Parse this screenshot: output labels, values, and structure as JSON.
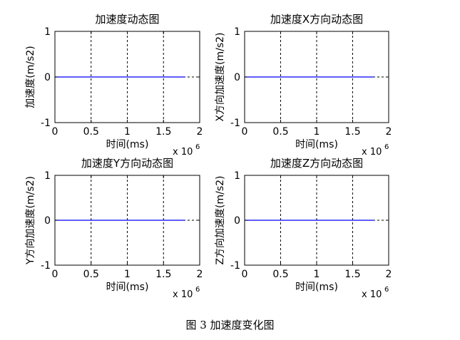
{
  "caption": "图 3  加速度变化图",
  "chart_data": [
    {
      "type": "line",
      "title": "加速度动态图",
      "xlabel": "时间(ms)",
      "ylabel": "加速度(m/s2)",
      "x_multiplier_label": "x 10",
      "x_multiplier_exponent": "6",
      "xlim": [
        0,
        2
      ],
      "ylim": [
        -1,
        1
      ],
      "xticks": [
        "0",
        "0.5",
        "1",
        "1.5",
        "2"
      ],
      "yticks": [
        "-1",
        "0",
        "1"
      ],
      "grid": "x-dashed",
      "series_color": "#0000ff",
      "series": [
        {
          "x": [
            0,
            1.8
          ],
          "y": [
            0,
            0
          ]
        }
      ]
    },
    {
      "type": "line",
      "title": "加速度X方向动态图",
      "xlabel": "时间(ms)",
      "ylabel": "X方向加速度(m/s2)",
      "x_multiplier_label": "x 10",
      "x_multiplier_exponent": "6",
      "xlim": [
        0,
        2
      ],
      "ylim": [
        -1,
        1
      ],
      "xticks": [
        "0",
        "0.5",
        "1",
        "1.5",
        "2"
      ],
      "yticks": [
        "-1",
        "0",
        "1"
      ],
      "grid": "x-dashed",
      "series_color": "#0000ff",
      "series": [
        {
          "x": [
            0,
            1.8
          ],
          "y": [
            0,
            0
          ]
        }
      ]
    },
    {
      "type": "line",
      "title": "加速度Y方向动态图",
      "xlabel": "时间(ms)",
      "ylabel": "Y方向加速度(m/s2)",
      "x_multiplier_label": "x 10",
      "x_multiplier_exponent": "6",
      "xlim": [
        0,
        2
      ],
      "ylim": [
        -1,
        1
      ],
      "xticks": [
        "0",
        "0.5",
        "1",
        "1.5",
        "2"
      ],
      "yticks": [
        "-1",
        "0",
        "1"
      ],
      "grid": "x-dashed",
      "series_color": "#0000ff",
      "series": [
        {
          "x": [
            0,
            1.8
          ],
          "y": [
            0,
            0
          ]
        }
      ]
    },
    {
      "type": "line",
      "title": "加速度Z方向动态图",
      "xlabel": "时间(ms)",
      "ylabel": "Z方向加速度(m/s2)",
      "x_multiplier_label": "x 10",
      "x_multiplier_exponent": "6",
      "xlim": [
        0,
        2
      ],
      "ylim": [
        -1,
        1
      ],
      "xticks": [
        "0",
        "0.5",
        "1",
        "1.5",
        "2"
      ],
      "yticks": [
        "-1",
        "0",
        "1"
      ],
      "grid": "x-dashed",
      "series_color": "#0000ff",
      "series": [
        {
          "x": [
            0,
            1.8
          ],
          "y": [
            0,
            0
          ]
        }
      ]
    }
  ]
}
